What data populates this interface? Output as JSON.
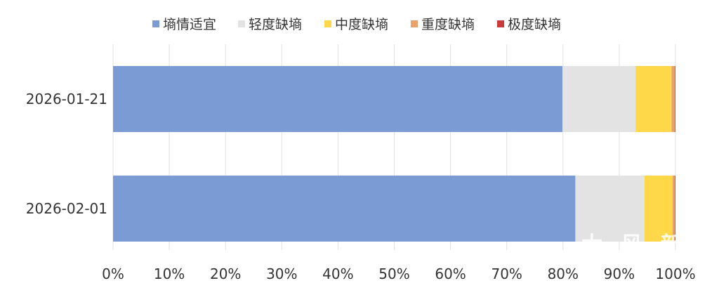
{
  "chart_data": {
    "type": "bar",
    "orientation": "horizontal",
    "stacked": "percent",
    "categories": [
      "2026-01-21",
      "2026-02-01"
    ],
    "series": [
      {
        "name": "墒情适宜",
        "color": "#7b9bd4",
        "values": [
          79.9,
          82.2
        ]
      },
      {
        "name": "轻度缺墒",
        "color": "#e3e3e3",
        "values": [
          13.0,
          12.3
        ]
      },
      {
        "name": "中度缺墒",
        "color": "#ffd84a",
        "values": [
          6.4,
          5.0
        ]
      },
      {
        "name": "重度缺墒",
        "color": "#eaa26a",
        "values": [
          0.6,
          0.4
        ]
      },
      {
        "name": "极度缺墒",
        "color": "#c93a3a",
        "values": [
          0.1,
          0.1
        ]
      }
    ],
    "xlim": [
      0,
      100
    ],
    "x_ticks": [
      "0%",
      "10%",
      "20%",
      "30%",
      "40%",
      "50%",
      "60%",
      "70%",
      "80%",
      "90%",
      "100%"
    ],
    "grid": "vertical",
    "legend_position": "top"
  },
  "watermark": "大 风 新"
}
